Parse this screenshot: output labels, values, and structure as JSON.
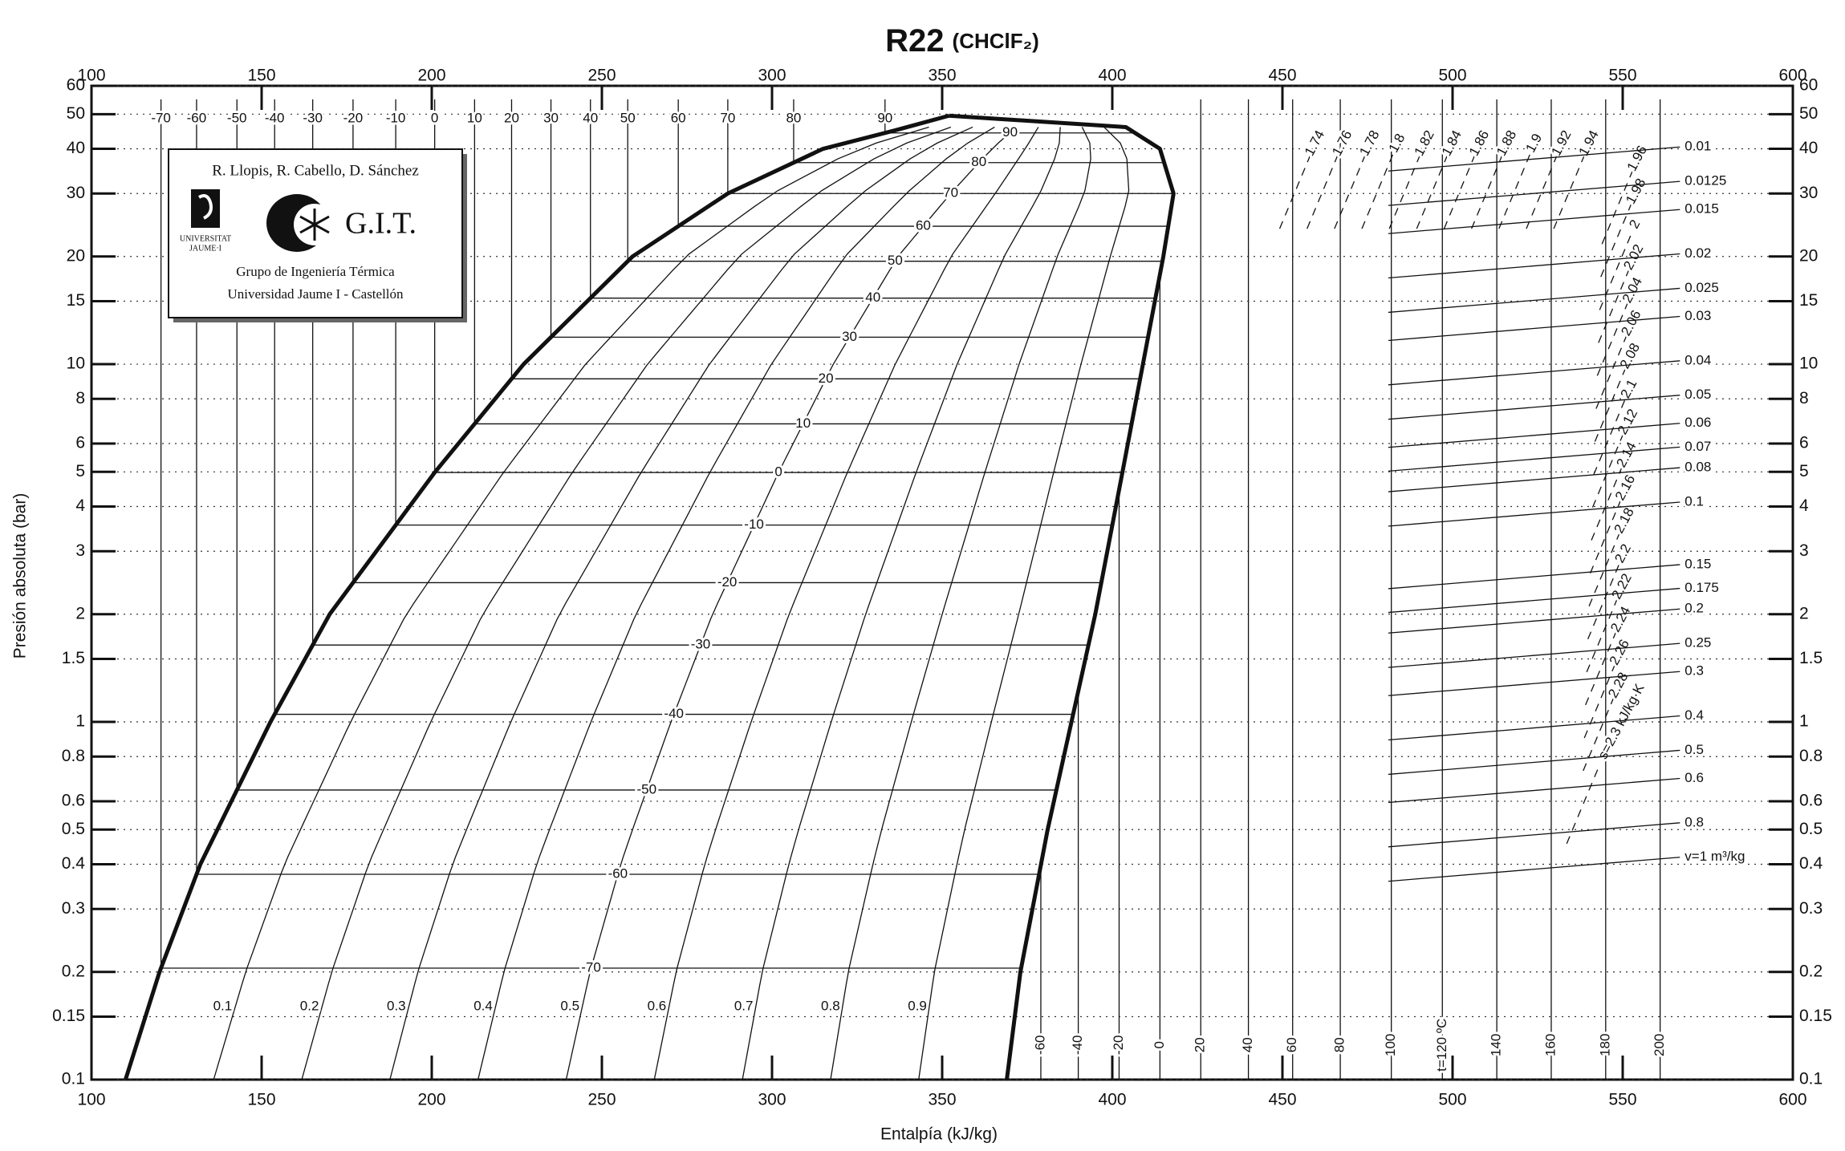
{
  "chart_data": {
    "type": "line",
    "title": "R22",
    "subtitle": "(CHClF₂)",
    "xlabel": "Entalpía (kJ/kg)",
    "ylabel": "Presión absoluta (bar)",
    "xlim": [
      100,
      600
    ],
    "xticks": [
      100,
      150,
      200,
      250,
      300,
      350,
      400,
      450,
      500,
      550,
      600
    ],
    "ylim": [
      0.1,
      60
    ],
    "yticks": [
      0.1,
      0.15,
      0.2,
      0.3,
      0.4,
      0.5,
      0.6,
      0.8,
      1,
      1.5,
      2,
      3,
      4,
      5,
      6,
      8,
      10,
      15,
      20,
      30,
      40,
      50,
      60
    ],
    "log_y": true,
    "grid": true,
    "series": [
      {
        "color": "#111111",
        "x": [
          110,
          120,
          132,
          152.6,
          170,
          201,
          227,
          259,
          287,
          315,
          336,
          352
        ],
        "values": [
          0.1,
          0.2,
          0.4,
          1,
          2,
          5,
          10,
          20,
          30,
          40,
          45,
          49.5
        ]
      },
      {
        "color": "#111111",
        "x": [
          369,
          373,
          381,
          388,
          395,
          403,
          409,
          415,
          418,
          414,
          404,
          352
        ],
        "values": [
          0.1,
          0.2,
          0.5,
          1,
          2,
          5,
          10,
          20,
          30,
          40,
          46,
          49.5
        ]
      }
    ],
    "isotherms": {
      "t": [
        -70,
        -60,
        -50,
        -40,
        -30,
        -20,
        -10,
        0,
        10,
        20,
        30,
        40,
        50,
        60,
        70,
        80,
        90
      ],
      "p_sat": [
        0.205,
        0.375,
        0.645,
        1.05,
        1.64,
        2.45,
        3.55,
        4.98,
        6.81,
        9.1,
        11.9,
        15.3,
        19.4,
        24.3,
        30.0,
        36.6,
        44.3
      ]
    },
    "quality": [
      0.1,
      0.2,
      0.3,
      0.4,
      0.5,
      0.6,
      0.7,
      0.8,
      0.9
    ],
    "superheated_isotherms": {
      "t": [
        -60,
        -40,
        -20,
        0,
        20,
        40,
        60,
        80,
        100,
        {
          "value": 120,
          "label": "t=120 ºC"
        },
        140,
        160,
        180,
        200
      ],
      "h": [
        379,
        390,
        402,
        414,
        426,
        440,
        453,
        467,
        482,
        497,
        513,
        529,
        545,
        561
      ]
    },
    "entropy": [
      1.74,
      1.76,
      1.78,
      1.8,
      1.82,
      1.84,
      1.86,
      1.88,
      1.9,
      1.92,
      1.94,
      1.96,
      1.98,
      2,
      2.02,
      2.04,
      2.06,
      2.08,
      2.1,
      2.12,
      2.14,
      2.16,
      2.18,
      2.2,
      2.22,
      2.24,
      2.26,
      2.28,
      {
        "value": 2.3,
        "label": "s=2.3 kJ/kg·K"
      }
    ],
    "volume": [
      0.01,
      0.0125,
      0.015,
      0.02,
      0.025,
      0.03,
      0.04,
      0.05,
      0.06,
      0.07,
      0.08,
      0.1,
      0.15,
      0.175,
      0.2,
      0.25,
      0.3,
      0.4,
      0.5,
      0.6,
      0.8,
      {
        "value": 1,
        "label": "v=1 m³/kg"
      }
    ]
  },
  "logo": {
    "authors": "R. Llopis, R. Cabello, D. Sánchez",
    "university": [
      "UNIVERSITAT",
      "JAUME·I"
    ],
    "group_abbr": "G.I.T.",
    "group": "Grupo de Ingeniería Térmica",
    "institution": "Universidad Jaume I - Castellón"
  }
}
